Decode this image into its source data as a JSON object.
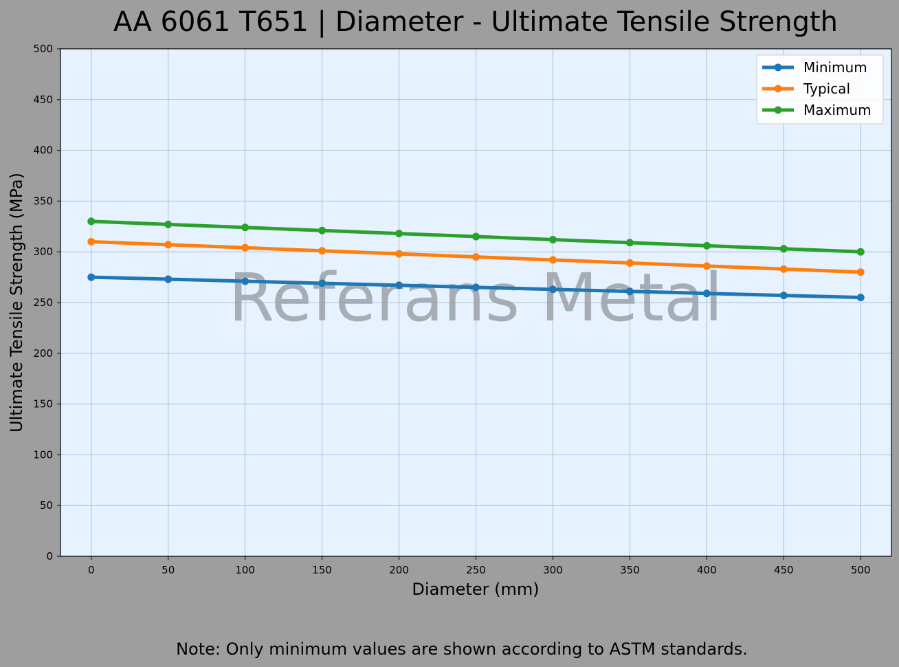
{
  "chart_data": {
    "type": "line",
    "title": "AA 6061 T651 | Diameter - Ultimate Tensile Strength",
    "xlabel": "Diameter (mm)",
    "ylabel": "Ultimate Tensile Strength (MPa)",
    "x": [
      0,
      50,
      100,
      150,
      200,
      250,
      300,
      350,
      400,
      450,
      500
    ],
    "xticks": [
      "0",
      "50",
      "100",
      "150",
      "200",
      "250",
      "300",
      "350",
      "400",
      "450",
      "500"
    ],
    "yticks": [
      "0",
      "50",
      "100",
      "150",
      "200",
      "250",
      "300",
      "350",
      "400",
      "450",
      "500"
    ],
    "xlim": [
      -20,
      520
    ],
    "ylim": [
      0,
      500
    ],
    "grid": true,
    "legend_position": "top-right",
    "series": [
      {
        "name": "Minimum",
        "color": "#1f77b4",
        "values": [
          275,
          273,
          271,
          269,
          267,
          265,
          263,
          261,
          259,
          257,
          255
        ]
      },
      {
        "name": "Typical",
        "color": "#ff7f0e",
        "values": [
          310,
          307,
          304,
          301,
          298,
          295,
          292,
          289,
          286,
          283,
          280
        ]
      },
      {
        "name": "Maximum",
        "color": "#2ca02c",
        "values": [
          330,
          327,
          324,
          321,
          318,
          315,
          312,
          309,
          306,
          303,
          300
        ]
      }
    ],
    "watermark": "Referans Metal",
    "note": "Note: Only minimum values are shown according to ASTM standards.",
    "plot_background": "#e6f2ff",
    "figure_background": "#9e9e9e"
  }
}
